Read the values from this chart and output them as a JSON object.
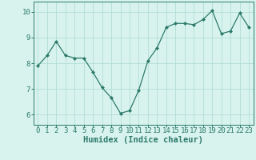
{
  "x": [
    0,
    1,
    2,
    3,
    4,
    5,
    6,
    7,
    8,
    9,
    10,
    11,
    12,
    13,
    14,
    15,
    16,
    17,
    18,
    19,
    20,
    21,
    22,
    23
  ],
  "y": [
    7.9,
    8.3,
    8.85,
    8.3,
    8.2,
    8.2,
    7.65,
    7.05,
    6.65,
    6.05,
    6.15,
    6.95,
    8.1,
    8.6,
    9.4,
    9.55,
    9.55,
    9.5,
    9.7,
    10.05,
    9.15,
    9.25,
    9.95,
    9.4
  ],
  "xlim": [
    -0.5,
    23.5
  ],
  "ylim": [
    5.6,
    10.4
  ],
  "yticks": [
    6,
    7,
    8,
    9,
    10
  ],
  "xticks": [
    0,
    1,
    2,
    3,
    4,
    5,
    6,
    7,
    8,
    9,
    10,
    11,
    12,
    13,
    14,
    15,
    16,
    17,
    18,
    19,
    20,
    21,
    22,
    23
  ],
  "xlabel": "Humidex (Indice chaleur)",
  "line_color": "#2d7a6b",
  "marker_color": "#2d7a6b",
  "bg_color": "#d8f3ee",
  "grid_color": "#b2ddd5",
  "axis_color": "#2d7a6b",
  "tick_color": "#2d7a6b",
  "xlabel_color": "#2d7a6b",
  "xlabel_fontsize": 7.5,
  "tick_fontsize": 6.5
}
